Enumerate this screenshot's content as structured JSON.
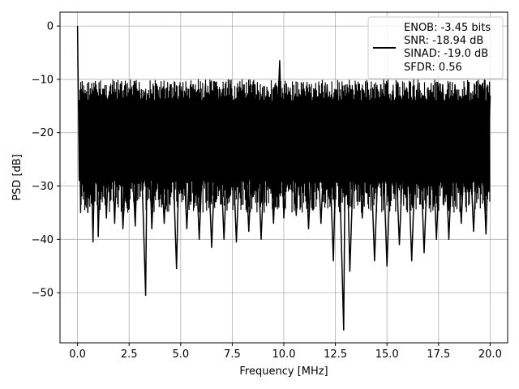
{
  "chart_data": {
    "type": "line",
    "title": "",
    "xlabel": "Frequency [MHz]",
    "ylabel": "PSD [dB]",
    "xlim": [
      -0.85,
      20.85
    ],
    "ylim": [
      -59.4,
      2.6
    ],
    "x_ticks": [
      0.0,
      2.5,
      5.0,
      7.5,
      10.0,
      12.5,
      15.0,
      17.5,
      20.0
    ],
    "x_tick_labels": [
      "0.0",
      "2.5",
      "5.0",
      "7.5",
      "10.0",
      "12.5",
      "15.0",
      "17.5",
      "20.0"
    ],
    "y_ticks": [
      0,
      -10,
      -20,
      -30,
      -40,
      -50
    ],
    "y_tick_labels": [
      "0",
      "−10",
      "−20",
      "−30",
      "−40",
      "−50"
    ],
    "grid": true,
    "legend": {
      "placement": "top-right",
      "lines": [
        "ENOB: -3.45 bits",
        "SNR: -18.94 dB",
        "SINAD: -19.0 dB",
        "SFDR: 0.56"
      ]
    },
    "series": [
      {
        "color": "#000000",
        "noise_band": [
          -35,
          -10
        ],
        "x": [
          0.0,
          0.02,
          0.05,
          0.08,
          0.1,
          0.15,
          0.2,
          0.3,
          0.4,
          0.5,
          0.6,
          0.75,
          0.9,
          1.0,
          1.2,
          1.4,
          1.6,
          1.8,
          2.0,
          2.2,
          2.5,
          2.8,
          3.0,
          3.3,
          3.4,
          3.6,
          3.9,
          4.2,
          4.5,
          4.8,
          5.0,
          5.3,
          5.6,
          5.9,
          6.2,
          6.5,
          6.8,
          7.1,
          7.4,
          7.7,
          8.0,
          8.3,
          8.6,
          8.9,
          9.2,
          9.5,
          9.8,
          10.0,
          10.3,
          10.6,
          10.9,
          11.2,
          11.5,
          11.8,
          12.1,
          12.4,
          12.6,
          12.9,
          13.0,
          13.2,
          13.5,
          13.8,
          14.1,
          14.4,
          14.7,
          15.0,
          15.3,
          15.6,
          15.9,
          16.2,
          16.5,
          16.8,
          17.1,
          17.4,
          17.7,
          18.0,
          18.3,
          18.6,
          18.9,
          19.2,
          19.5,
          19.8,
          20.0
        ],
        "y": [
          0.0,
          -7.0,
          -16.0,
          -29.0,
          -14.0,
          -35.0,
          -13.0,
          -31.0,
          -14.0,
          -35.0,
          -13.0,
          -40.5,
          -12.0,
          -39.5,
          -13.0,
          -36.0,
          -14.0,
          -37.0,
          -12.0,
          -38.0,
          -13.0,
          -37.5,
          -12.0,
          -50.5,
          -13.0,
          -38.0,
          -12.0,
          -37.0,
          -11.0,
          -45.5,
          -12.0,
          -38.0,
          -11.0,
          -40.0,
          -11.0,
          -41.5,
          -12.0,
          -40.0,
          -11.0,
          -40.5,
          -12.0,
          -38.5,
          -11.0,
          -40.0,
          -12.0,
          -37.0,
          -6.5,
          -36.0,
          -12.0,
          -35.5,
          -12.0,
          -38.0,
          -12.0,
          -37.0,
          -11.0,
          -44.0,
          -12.0,
          -57.0,
          -12.0,
          -46.0,
          -11.0,
          -36.0,
          -12.0,
          -44.0,
          -11.0,
          -45.0,
          -12.0,
          -41.0,
          -12.0,
          -44.0,
          -11.0,
          -42.5,
          -12.0,
          -40.0,
          -11.0,
          -40.0,
          -11.0,
          -37.0,
          -12.0,
          -38.5,
          -11.0,
          -39.0,
          -13.0
        ]
      }
    ]
  }
}
